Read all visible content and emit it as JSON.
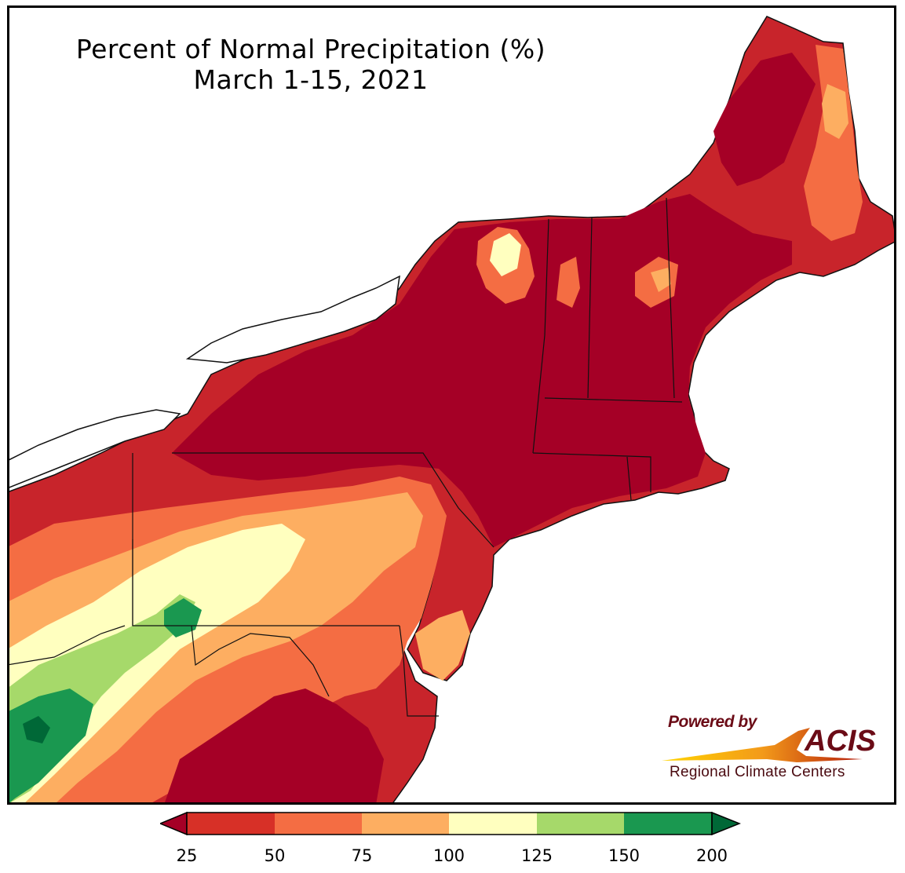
{
  "title": "Percent of Normal Precipitation (%)",
  "subtitle": "March 1-15, 2021",
  "logo": {
    "powered_by": "Powered by",
    "acis": "ACIS",
    "tagline": "Regional Climate Centers"
  },
  "legend": {
    "ticks": [
      "25",
      "50",
      "75",
      "100",
      "125",
      "150",
      "200"
    ],
    "bins": [
      {
        "range": "< 25",
        "color": "#a50026"
      },
      {
        "range": "25-50",
        "color": "#d73027"
      },
      {
        "range": "50-75",
        "color": "#f46d43"
      },
      {
        "range": "75-100",
        "color": "#fdae61"
      },
      {
        "range": "100-125",
        "color": "#ffffbf"
      },
      {
        "range": "125-150",
        "color": "#a6d96a"
      },
      {
        "range": "150-200",
        "color": "#1a9850"
      },
      {
        "range": "> 200",
        "color": "#006837"
      }
    ]
  },
  "colors": {
    "land_default": "#c8242b",
    "water": "#ffffff",
    "border": "#000000"
  }
}
